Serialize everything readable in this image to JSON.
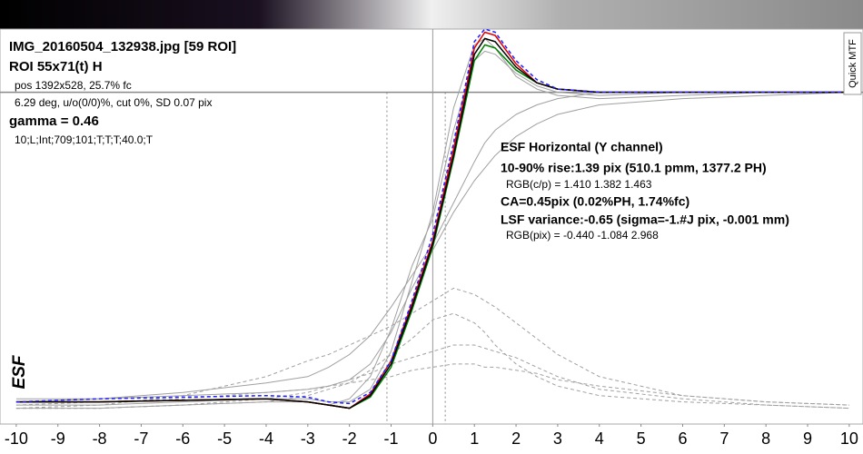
{
  "chart_data": {
    "type": "line",
    "y_label": "ESF",
    "button": "Quick MTF",
    "info_lines": [
      "IMG_20160504_132938.jpg [59 ROI]",
      "ROI 55x71(t) H",
      "pos 1392x528, 25.7% fc",
      "6.29 deg, u/o(0/0)%, cut 0%, SD 0.07 pix",
      "gamma = 0.46",
      "10;L;Int;709;101;T;T;T;40.0;T"
    ],
    "results": [
      "ESF Horizontal (Y channel)",
      "10-90% rise:1.39 pix (510.1 pmm, 1377.2 PH)",
      "RGB(c/p) = 1.410 1.382 1.463",
      "CA=0.45pix (0.02%PH, 1.74%fc)",
      "LSF variance:-0.65 (sigma=-1.#J pix, -0.001 mm)",
      "RGB(pix) = -0.440 -1.084 2.968"
    ],
    "x": [
      -10,
      -8,
      -6,
      -4,
      -3,
      -2.5,
      -2,
      -1.5,
      -1,
      -0.5,
      0,
      0.5,
      1,
      1.25,
      1.5,
      2,
      2.5,
      3,
      4,
      6,
      8,
      10
    ],
    "xlim": [
      -10.39,
      10.33
    ],
    "xticks": [
      -10,
      -9,
      -8,
      -7,
      -6,
      -5,
      -4,
      -3,
      -2,
      -1,
      0,
      1,
      2,
      3,
      4,
      5,
      6,
      7,
      8,
      9,
      10
    ],
    "ylim": [
      -0.05,
      1.2
    ],
    "grid": false,
    "hline": 1,
    "vlines": [
      -1.1,
      0.3
    ],
    "series": [
      {
        "color": "#a0a0a0",
        "dashed": true,
        "values": [
          0,
          0.01,
          0.04,
          0.1,
          0.15,
          0.17,
          0.2,
          0.23,
          0.26,
          0.3,
          0.34,
          0.38,
          0.36,
          0.34,
          0.32,
          0.27,
          0.22,
          0.17,
          0.1,
          0.04,
          0.02,
          0.01
        ]
      },
      {
        "color": "#a0a0a0",
        "dashed": true,
        "values": [
          0,
          0,
          0.01,
          0.02,
          0.04,
          0.06,
          0.08,
          0.12,
          0.17,
          0.22,
          0.28,
          0.3,
          0.27,
          0.24,
          0.2,
          0.14,
          0.1,
          0.07,
          0.04,
          0.02,
          0.01,
          0
        ]
      },
      {
        "color": "#a0a0a0",
        "dashed": true,
        "values": [
          0,
          0,
          0.01,
          0.03,
          0.05,
          0.07,
          0.09,
          0.11,
          0.14,
          0.16,
          0.18,
          0.2,
          0.2,
          0.19,
          0.18,
          0.16,
          0.13,
          0.1,
          0.06,
          0.03,
          0.01,
          0
        ]
      },
      {
        "color": "#a0a0a0",
        "dashed": true,
        "values": [
          0.01,
          0.02,
          0.03,
          0.05,
          0.06,
          0.07,
          0.08,
          0.09,
          0.1,
          0.12,
          0.13,
          0.14,
          0.14,
          0.13,
          0.13,
          0.12,
          0.11,
          0.09,
          0.07,
          0.04,
          0.02,
          0.01
        ]
      },
      {
        "color": "#a0a0a0",
        "dashed": false,
        "values": [
          0.02,
          0.03,
          0.05,
          0.08,
          0.1,
          0.13,
          0.17,
          0.23,
          0.32,
          0.42,
          0.52,
          0.65,
          0.78,
          0.84,
          0.88,
          0.93,
          0.96,
          0.98,
          1.0,
          1.0,
          1.0,
          1.0
        ]
      },
      {
        "color": "#a0a0a0",
        "dashed": false,
        "values": [
          0,
          0,
          0.01,
          0.02,
          0.02,
          0.01,
          0.03,
          0.1,
          0.25,
          0.45,
          0.6,
          0.88,
          1.1,
          1.13,
          1.12,
          1.06,
          1.02,
          1.0,
          0.99,
          1.0,
          1.0,
          1.0
        ]
      },
      {
        "color": "#a0a0a0",
        "dashed": false,
        "values": [
          0.03,
          0.03,
          0.04,
          0.05,
          0.06,
          0.07,
          0.09,
          0.14,
          0.24,
          0.38,
          0.5,
          0.62,
          0.72,
          0.76,
          0.8,
          0.86,
          0.9,
          0.93,
          0.96,
          0.98,
          0.99,
          1.0
        ]
      },
      {
        "color": "#a0a0a0",
        "dashed": false,
        "values": [
          0.01,
          0.01,
          0.02,
          0.03,
          0.03,
          0.02,
          0.02,
          0.06,
          0.18,
          0.4,
          0.62,
          0.95,
          1.15,
          1.17,
          1.14,
          1.05,
          1.01,
          0.99,
          0.98,
          0.99,
          1.0,
          1.0
        ]
      },
      {
        "color": "#008000",
        "dashed": false,
        "values": [
          0.02,
          0.02,
          0.025,
          0.03,
          0.02,
          0.01,
          0,
          0.035,
          0.13,
          0.31,
          0.51,
          0.79,
          1.1,
          1.15,
          1.14,
          1.07,
          1.03,
          1.01,
          1.0,
          1.0,
          1.0,
          1.0
        ]
      },
      {
        "color": "#e00000",
        "dashed": false,
        "values": [
          0.02,
          0.02,
          0.025,
          0.03,
          0.02,
          0.01,
          0,
          0.045,
          0.15,
          0.33,
          0.53,
          0.82,
          1.14,
          1.19,
          1.18,
          1.09,
          1.03,
          1.01,
          1.0,
          1.0,
          1.0,
          1.0
        ]
      },
      {
        "color": "#000000",
        "dashed": false,
        "values": [
          0.02,
          0.02,
          0.025,
          0.03,
          0.02,
          0.01,
          0,
          0.04,
          0.14,
          0.32,
          0.52,
          0.8,
          1.12,
          1.17,
          1.16,
          1.08,
          1.03,
          1.01,
          1.0,
          1.0,
          1.0,
          1.0
        ]
      },
      {
        "color": "#2020ff",
        "dashed": true,
        "values": [
          0.02,
          0.03,
          0.035,
          0.04,
          0.035,
          0.02,
          0.015,
          0.05,
          0.15,
          0.34,
          0.55,
          0.84,
          1.16,
          1.2,
          1.19,
          1.1,
          1.04,
          1.01,
          1.0,
          1.0,
          1.0,
          1.0
        ]
      }
    ]
  }
}
